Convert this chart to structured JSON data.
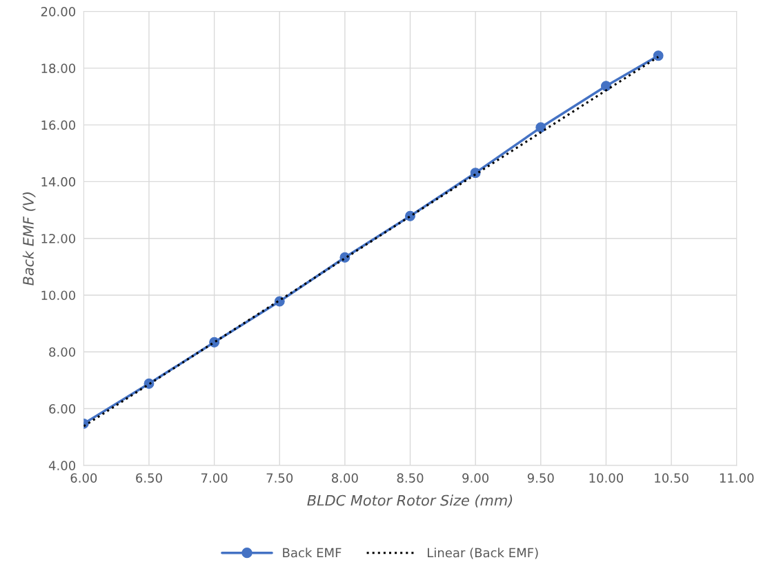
{
  "chart_data": {
    "type": "line",
    "xlabel": "BLDC Motor Rotor Size (mm)",
    "ylabel": "Back EMF (V)",
    "x": [
      6.0,
      6.5,
      7.0,
      7.5,
      8.0,
      8.5,
      9.0,
      9.5,
      10.0,
      10.4
    ],
    "series": [
      {
        "name": "Back EMF",
        "color": "#4472c4",
        "values": [
          5.47,
          6.88,
          8.34,
          9.78,
          11.33,
          12.79,
          14.31,
          15.91,
          17.37,
          18.44
        ],
        "marker": "circle",
        "line_style": "solid"
      },
      {
        "name": "Linear (Back EMF)",
        "color": "#000000",
        "x": [
          6.0,
          10.4
        ],
        "values": [
          5.38,
          18.4
        ],
        "marker": "none",
        "line_style": "dotted"
      }
    ],
    "xlim": [
      6.0,
      11.0
    ],
    "xticks": [
      {
        "value": 6.0,
        "label": "6.00"
      },
      {
        "value": 6.5,
        "label": "6.50"
      },
      {
        "value": 7.0,
        "label": "7.00"
      },
      {
        "value": 7.5,
        "label": "7.50"
      },
      {
        "value": 8.0,
        "label": "8.00"
      },
      {
        "value": 8.5,
        "label": "8.50"
      },
      {
        "value": 9.0,
        "label": "9.00"
      },
      {
        "value": 9.5,
        "label": "9.50"
      },
      {
        "value": 10.0,
        "label": "10.00"
      },
      {
        "value": 10.5,
        "label": "10.50"
      },
      {
        "value": 11.0,
        "label": "11.00"
      }
    ],
    "ylim": [
      4.0,
      20.0
    ],
    "yticks": [
      {
        "value": 4.0,
        "label": "4.00"
      },
      {
        "value": 6.0,
        "label": "6.00"
      },
      {
        "value": 8.0,
        "label": "8.00"
      },
      {
        "value": 10.0,
        "label": "10.00"
      },
      {
        "value": 12.0,
        "label": "12.00"
      },
      {
        "value": 14.0,
        "label": "14.00"
      },
      {
        "value": 16.0,
        "label": "16.00"
      },
      {
        "value": 18.0,
        "label": "18.00"
      },
      {
        "value": 20.0,
        "label": "20.00"
      }
    ],
    "grid": true,
    "legend": "bottom"
  }
}
